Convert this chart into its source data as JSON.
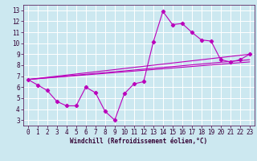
{
  "title": "",
  "xlabel": "Windchill (Refroidissement éolien,°C)",
  "ylabel": "",
  "background_color": "#cce8f0",
  "grid_color": "#ffffff",
  "line_color": "#bb00bb",
  "xlim": [
    -0.5,
    23.5
  ],
  "ylim": [
    2.5,
    13.5
  ],
  "xticks": [
    0,
    1,
    2,
    3,
    4,
    5,
    6,
    7,
    8,
    9,
    10,
    11,
    12,
    13,
    14,
    15,
    16,
    17,
    18,
    19,
    20,
    21,
    22,
    23
  ],
  "yticks": [
    3,
    4,
    5,
    6,
    7,
    8,
    9,
    10,
    11,
    12,
    13
  ],
  "main_x": [
    0,
    1,
    2,
    3,
    4,
    5,
    6,
    7,
    8,
    9,
    10,
    11,
    12,
    13,
    14,
    15,
    16,
    17,
    18,
    19,
    20,
    21,
    22,
    23
  ],
  "main_y": [
    6.7,
    6.2,
    5.7,
    4.7,
    4.3,
    4.3,
    6.0,
    5.5,
    3.8,
    3.0,
    5.4,
    6.3,
    6.5,
    10.1,
    12.9,
    11.7,
    11.8,
    11.0,
    10.3,
    10.2,
    8.5,
    8.3,
    8.5,
    9.0
  ],
  "trend_lines": [
    {
      "x0": 0,
      "y0": 6.7,
      "x1": 23,
      "y1": 9.0
    },
    {
      "x0": 0,
      "y0": 6.7,
      "x1": 23,
      "y1": 8.5
    },
    {
      "x0": 0,
      "y0": 6.7,
      "x1": 23,
      "y1": 8.3
    }
  ],
  "tick_fontsize": 5.5,
  "xlabel_fontsize": 5.5
}
